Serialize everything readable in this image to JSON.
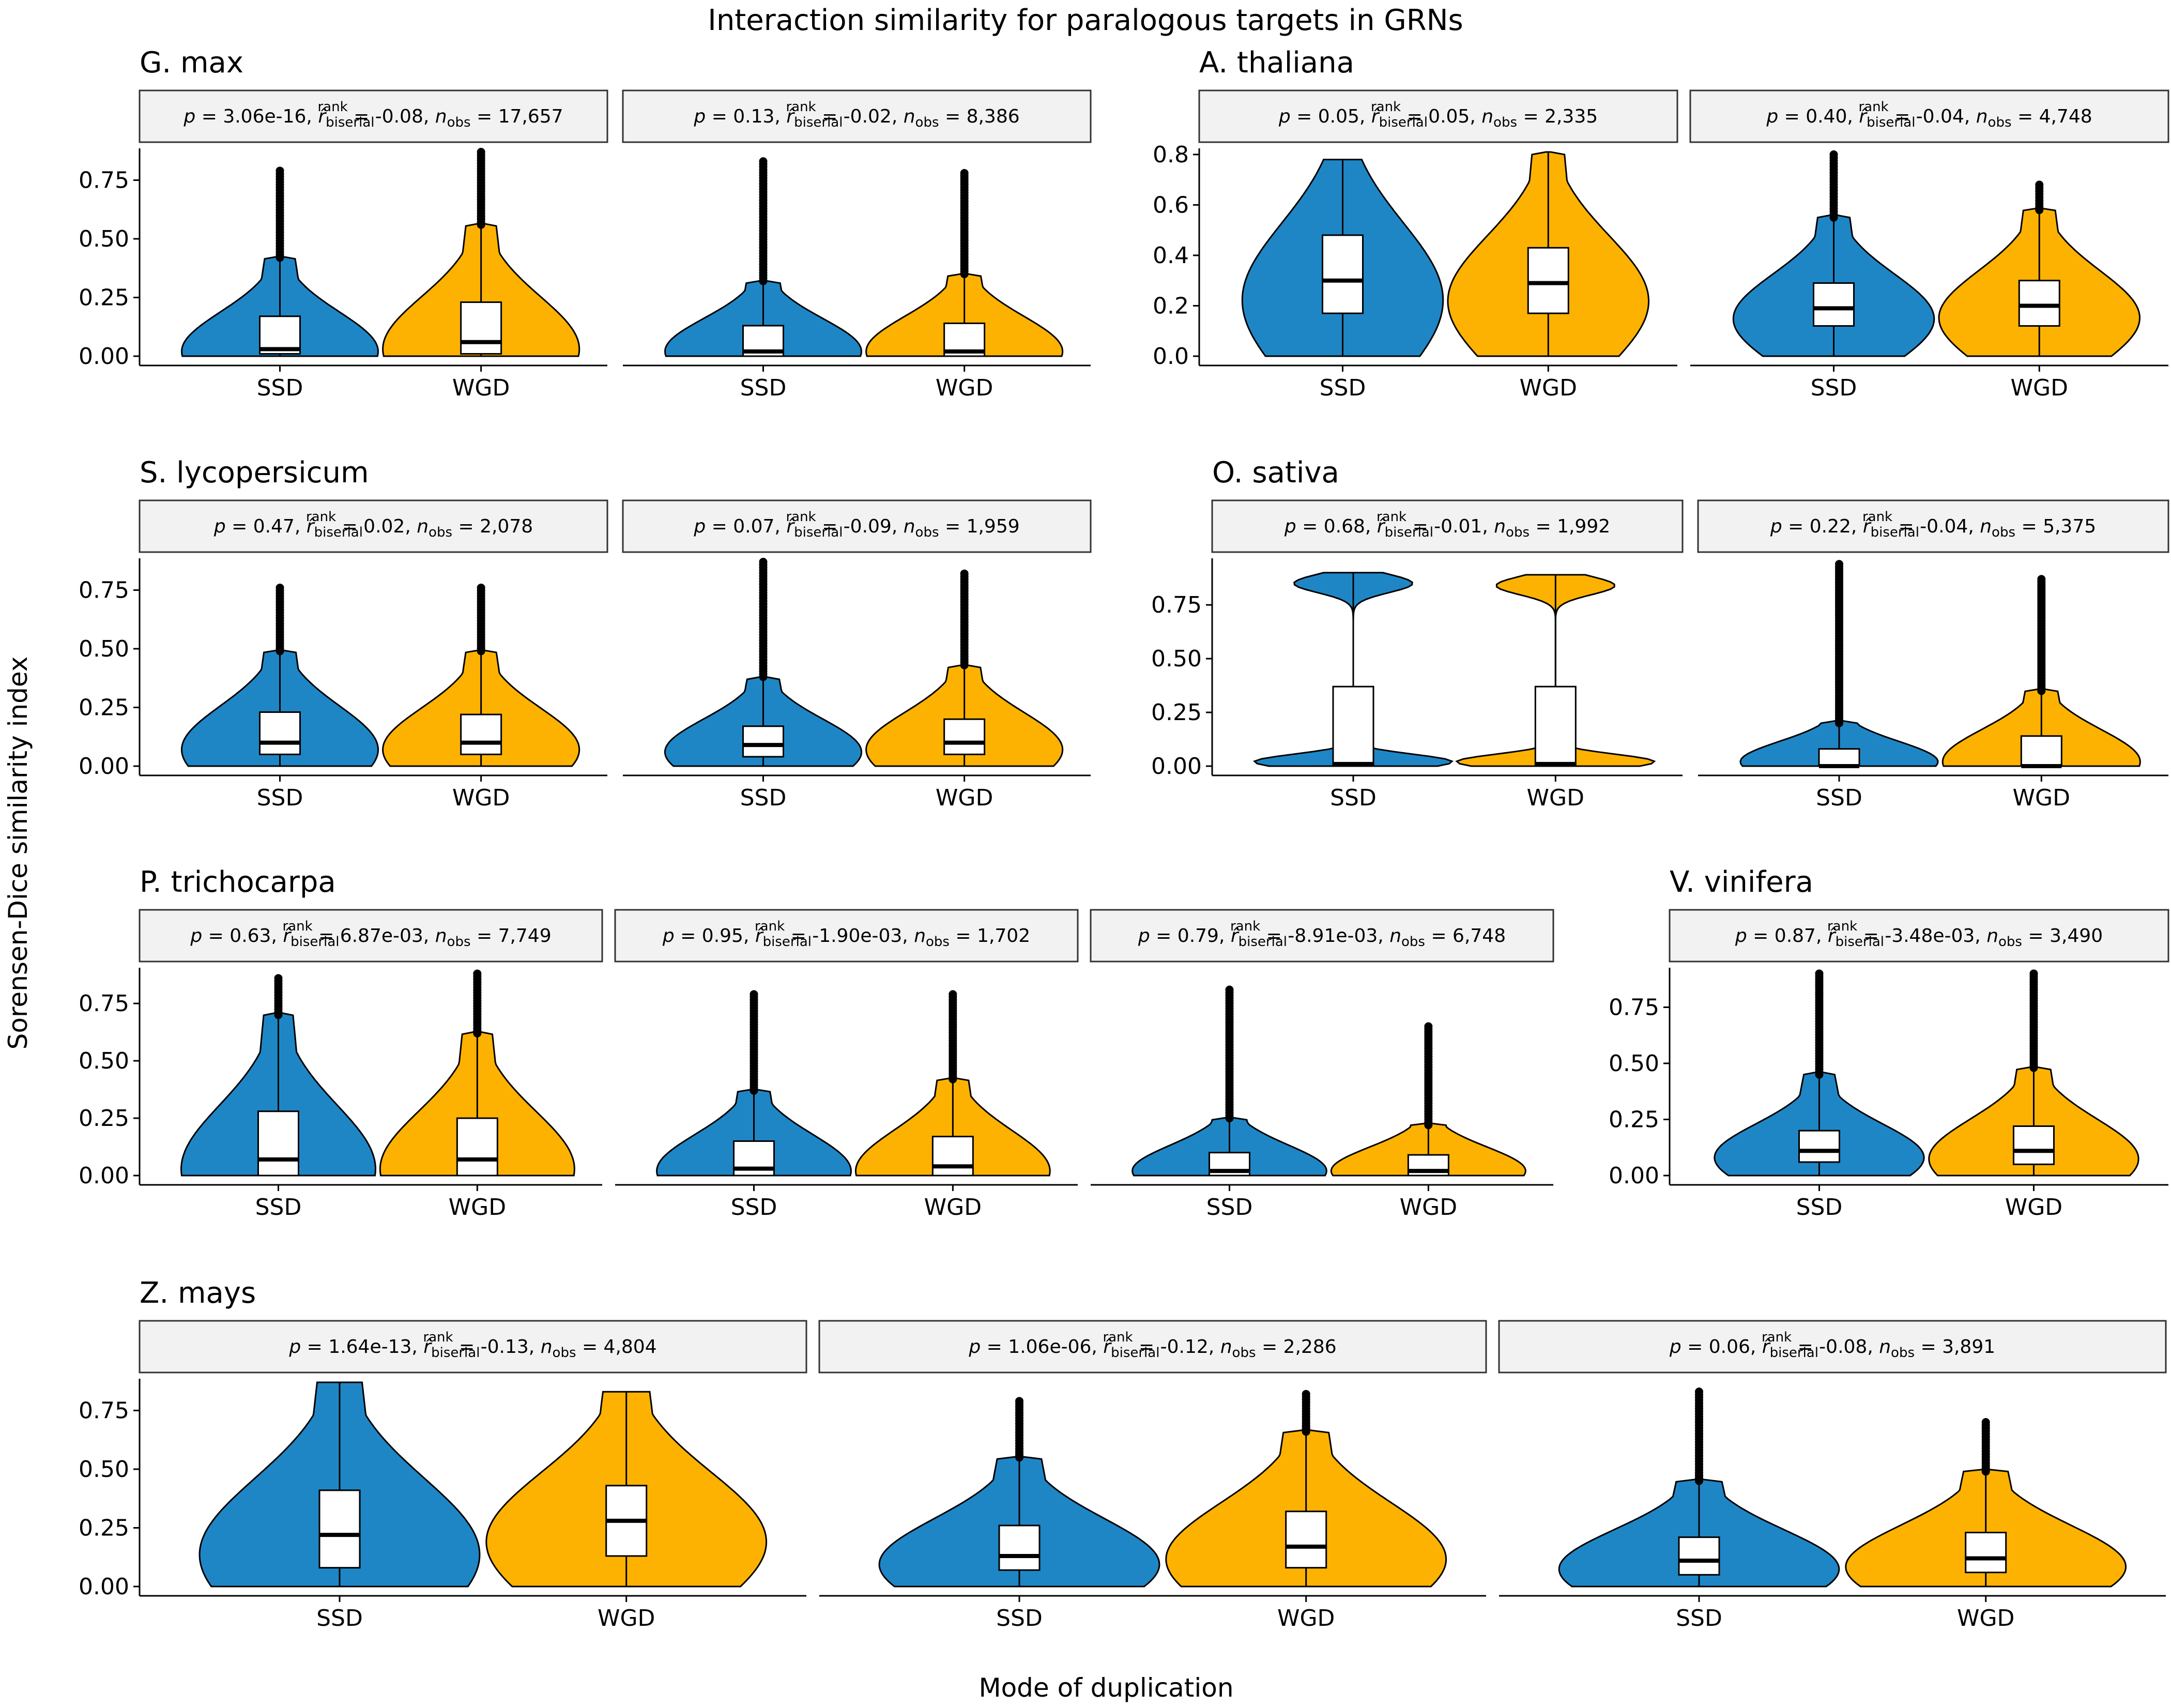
{
  "title": "Interaction similarity for paralogous targets in GRNs",
  "xlabel": "Mode of duplication",
  "ylabel": "Sorensen-Dice similarity index",
  "colors": {
    "SSD": "#1f86c6",
    "WGD": "#fdb202"
  },
  "chart_data": {
    "type": "violin",
    "categories": [
      "SSD",
      "WGD"
    ],
    "species": [
      {
        "name": "G. max",
        "yticks": [
          "0.00",
          "0.25",
          "0.50",
          "0.75"
        ],
        "ylim": [
          0,
          0.87
        ],
        "panels": [
          {
            "p": "3.06e-16",
            "r": "-0.08",
            "n": "17,657",
            "groups": [
              {
                "name": "SSD",
                "q1": 0.01,
                "median": 0.03,
                "q3": 0.17,
                "whisker_high": 0.42,
                "max": 0.79
              },
              {
                "name": "WGD",
                "q1": 0.01,
                "median": 0.06,
                "q3": 0.23,
                "whisker_high": 0.56,
                "max": 0.87
              }
            ]
          },
          {
            "p": "0.13",
            "r": "-0.02",
            "n": "8,386",
            "groups": [
              {
                "name": "SSD",
                "q1": 0.0,
                "median": 0.02,
                "q3": 0.13,
                "whisker_high": 0.32,
                "max": 0.83
              },
              {
                "name": "WGD",
                "q1": 0.0,
                "median": 0.02,
                "q3": 0.14,
                "whisker_high": 0.35,
                "max": 0.78
              }
            ]
          }
        ]
      },
      {
        "name": "A. thaliana",
        "yticks": [
          "0.0",
          "0.2",
          "0.4",
          "0.6",
          "0.8"
        ],
        "ylim": [
          0,
          0.81
        ],
        "panels": [
          {
            "p": "0.05",
            "r": "0.05",
            "n": "2,335",
            "groups": [
              {
                "name": "SSD",
                "q1": 0.17,
                "median": 0.3,
                "q3": 0.48,
                "whisker_high": 0.78,
                "max": 0.78
              },
              {
                "name": "WGD",
                "q1": 0.17,
                "median": 0.29,
                "q3": 0.43,
                "whisker_high": 0.81,
                "max": 0.81
              }
            ]
          },
          {
            "p": "0.40",
            "r": "-0.04",
            "n": "4,748",
            "groups": [
              {
                "name": "SSD",
                "q1": 0.12,
                "median": 0.19,
                "q3": 0.29,
                "whisker_high": 0.55,
                "max": 0.8
              },
              {
                "name": "WGD",
                "q1": 0.12,
                "median": 0.2,
                "q3": 0.3,
                "whisker_high": 0.58,
                "max": 0.68
              }
            ]
          }
        ]
      },
      {
        "name": "S. lycopersicum",
        "yticks": [
          "0.00",
          "0.25",
          "0.50",
          "0.75"
        ],
        "ylim": [
          0,
          0.87
        ],
        "panels": [
          {
            "p": "0.47",
            "r": "0.02",
            "n": "2,078",
            "groups": [
              {
                "name": "SSD",
                "q1": 0.05,
                "median": 0.1,
                "q3": 0.23,
                "whisker_high": 0.49,
                "max": 0.76
              },
              {
                "name": "WGD",
                "q1": 0.05,
                "median": 0.1,
                "q3": 0.22,
                "whisker_high": 0.49,
                "max": 0.76
              }
            ]
          },
          {
            "p": "0.07",
            "r": "-0.09",
            "n": "1,959",
            "groups": [
              {
                "name": "SSD",
                "q1": 0.04,
                "median": 0.09,
                "q3": 0.17,
                "whisker_high": 0.38,
                "max": 0.87
              },
              {
                "name": "WGD",
                "q1": 0.05,
                "median": 0.1,
                "q3": 0.2,
                "whisker_high": 0.43,
                "max": 0.82
              }
            ]
          }
        ]
      },
      {
        "name": "O. sativa",
        "yticks": [
          "0.00",
          "0.25",
          "0.50",
          "0.75"
        ],
        "ylim": [
          0,
          0.95
        ],
        "panels": [
          {
            "p": "0.68",
            "r": "-0.01",
            "n": "1,992",
            "groups": [
              {
                "name": "SSD",
                "q1": 0.0,
                "median": 0.01,
                "q3": 0.37,
                "whisker_high": 0.9,
                "max": 0.9
              },
              {
                "name": "WGD",
                "q1": 0.0,
                "median": 0.01,
                "q3": 0.37,
                "whisker_high": 0.89,
                "max": 0.89
              }
            ]
          },
          {
            "p": "0.22",
            "r": "-0.04",
            "n": "5,375",
            "groups": [
              {
                "name": "SSD",
                "q1": 0.0,
                "median": 0.0,
                "q3": 0.08,
                "whisker_high": 0.2,
                "max": 0.94
              },
              {
                "name": "WGD",
                "q1": 0.0,
                "median": 0.0,
                "q3": 0.14,
                "whisker_high": 0.35,
                "max": 0.87
              }
            ]
          }
        ]
      },
      {
        "name": "P. trichocarpa",
        "yticks": [
          "0.00",
          "0.25",
          "0.50",
          "0.75"
        ],
        "ylim": [
          0,
          0.89
        ],
        "panels": [
          {
            "p": "0.63",
            "r": "6.87e-03",
            "n": "7,749",
            "groups": [
              {
                "name": "SSD",
                "q1": 0.0,
                "median": 0.07,
                "q3": 0.28,
                "whisker_high": 0.7,
                "max": 0.86
              },
              {
                "name": "WGD",
                "q1": 0.0,
                "median": 0.07,
                "q3": 0.25,
                "whisker_high": 0.62,
                "max": 0.88
              }
            ]
          },
          {
            "p": "0.95",
            "r": "-1.90e-03",
            "n": "1,702",
            "groups": [
              {
                "name": "SSD",
                "q1": 0.0,
                "median": 0.03,
                "q3": 0.15,
                "whisker_high": 0.37,
                "max": 0.79
              },
              {
                "name": "WGD",
                "q1": 0.0,
                "median": 0.04,
                "q3": 0.17,
                "whisker_high": 0.42,
                "max": 0.79
              }
            ]
          },
          {
            "p": "0.79",
            "r": "-8.91e-03",
            "n": "6,748",
            "groups": [
              {
                "name": "SSD",
                "q1": 0.0,
                "median": 0.02,
                "q3": 0.1,
                "whisker_high": 0.25,
                "max": 0.81
              },
              {
                "name": "WGD",
                "q1": 0.0,
                "median": 0.02,
                "q3": 0.09,
                "whisker_high": 0.22,
                "max": 0.65
              }
            ]
          }
        ]
      },
      {
        "name": "V. vinifera",
        "yticks": [
          "0.00",
          "0.25",
          "0.50",
          "0.75"
        ],
        "ylim": [
          0,
          0.91
        ],
        "panels": [
          {
            "p": "0.87",
            "r": "-3.48e-03",
            "n": "3,490",
            "groups": [
              {
                "name": "SSD",
                "q1": 0.06,
                "median": 0.11,
                "q3": 0.2,
                "whisker_high": 0.45,
                "max": 0.9
              },
              {
                "name": "WGD",
                "q1": 0.05,
                "median": 0.11,
                "q3": 0.22,
                "whisker_high": 0.48,
                "max": 0.9
              }
            ]
          }
        ]
      },
      {
        "name": "Z. mays",
        "yticks": [
          "0.00",
          "0.25",
          "0.50",
          "0.75"
        ],
        "ylim": [
          0,
          0.87
        ],
        "panels": [
          {
            "p": "1.64e-13",
            "r": "-0.13",
            "n": "4,804",
            "groups": [
              {
                "name": "SSD",
                "q1": 0.08,
                "median": 0.22,
                "q3": 0.41,
                "whisker_high": 0.87,
                "max": 0.87
              },
              {
                "name": "WGD",
                "q1": 0.13,
                "median": 0.28,
                "q3": 0.43,
                "whisker_high": 0.83,
                "max": 0.83
              }
            ]
          },
          {
            "p": "1.06e-06",
            "r": "-0.12",
            "n": "2,286",
            "groups": [
              {
                "name": "SSD",
                "q1": 0.07,
                "median": 0.13,
                "q3": 0.26,
                "whisker_high": 0.55,
                "max": 0.79
              },
              {
                "name": "WGD",
                "q1": 0.08,
                "median": 0.17,
                "q3": 0.32,
                "whisker_high": 0.66,
                "max": 0.82
              }
            ]
          },
          {
            "p": "0.06",
            "r": "-0.08",
            "n": "3,891",
            "groups": [
              {
                "name": "SSD",
                "q1": 0.05,
                "median": 0.11,
                "q3": 0.21,
                "whisker_high": 0.45,
                "max": 0.83
              },
              {
                "name": "WGD",
                "q1": 0.06,
                "median": 0.12,
                "q3": 0.23,
                "whisker_high": 0.49,
                "max": 0.7
              }
            ]
          }
        ]
      }
    ]
  }
}
